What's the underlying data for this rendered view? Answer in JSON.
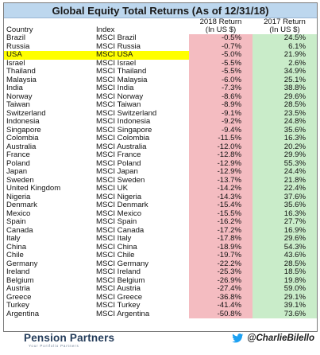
{
  "title": "Global Equity Total Returns (As of  12/31/18)",
  "headers": {
    "country": "Country",
    "index": "Index",
    "return_2018_line1": "2018 Return",
    "return_2018_line2": "(In US $)",
    "return_2017_line1": "2017 Return",
    "return_2017_line2": "(In US $)"
  },
  "highlight_row": "USA",
  "colors": {
    "title_bg": "#bdd7ee",
    "negative_bg": "#f4bcc1",
    "positive_bg": "#c9ecc9",
    "highlight": "#ffff00",
    "twitter_blue": "#1da1f2"
  },
  "chart_data": {
    "type": "table",
    "columns": [
      "Country",
      "Index",
      "2018 Return (In US $)",
      "2017 Return (In US $)"
    ],
    "rows": [
      {
        "country": "Brazil",
        "index": "MSCI Brazil",
        "r2018": "-0.5%",
        "r2017": "24.5%"
      },
      {
        "country": "Russia",
        "index": "MSCI Russia",
        "r2018": "-0.7%",
        "r2017": "6.1%"
      },
      {
        "country": "USA",
        "index": "MSCI USA",
        "r2018": "-5.0%",
        "r2017": "21.9%"
      },
      {
        "country": "Israel",
        "index": "MSCI Israel",
        "r2018": "-5.5%",
        "r2017": "2.6%"
      },
      {
        "country": "Thailand",
        "index": "MSCI Thailand",
        "r2018": "-5.5%",
        "r2017": "34.9%"
      },
      {
        "country": "Malaysia",
        "index": "MSCI Malaysia",
        "r2018": "-6.0%",
        "r2017": "25.1%"
      },
      {
        "country": "India",
        "index": "MSCI India",
        "r2018": "-7.3%",
        "r2017": "38.8%"
      },
      {
        "country": "Norway",
        "index": "MSCI Norway",
        "r2018": "-8.6%",
        "r2017": "29.6%"
      },
      {
        "country": "Taiwan",
        "index": "MSCI Taiwan",
        "r2018": "-8.9%",
        "r2017": "28.5%"
      },
      {
        "country": "Switzerland",
        "index": "MSCI Switzerland",
        "r2018": "-9.1%",
        "r2017": "23.5%"
      },
      {
        "country": "Indonesia",
        "index": "MSCI Indonesia",
        "r2018": "-9.2%",
        "r2017": "24.8%"
      },
      {
        "country": "Singapore",
        "index": "MSCI Singapore",
        "r2018": "-9.4%",
        "r2017": "35.6%"
      },
      {
        "country": "Colombia",
        "index": "MSCI Colombia",
        "r2018": "-11.5%",
        "r2017": "16.3%"
      },
      {
        "country": "Australia",
        "index": "MSCI Australia",
        "r2018": "-12.0%",
        "r2017": "20.2%"
      },
      {
        "country": "France",
        "index": "MSCI France",
        "r2018": "-12.8%",
        "r2017": "29.9%"
      },
      {
        "country": "Poland",
        "index": "MSCI Poland",
        "r2018": "-12.9%",
        "r2017": "55.3%"
      },
      {
        "country": "Japan",
        "index": "MSCI Japan",
        "r2018": "-12.9%",
        "r2017": "24.4%"
      },
      {
        "country": "Sweden",
        "index": "MSCI Sweden",
        "r2018": "-13.7%",
        "r2017": "21.8%"
      },
      {
        "country": "United Kingdom",
        "index": "MSCI UK",
        "r2018": "-14.2%",
        "r2017": "22.4%"
      },
      {
        "country": "Nigeria",
        "index": "MSCI Nigeria",
        "r2018": "-14.3%",
        "r2017": "37.6%"
      },
      {
        "country": "Denmark",
        "index": "MSCI Denmark",
        "r2018": "-15.4%",
        "r2017": "35.6%"
      },
      {
        "country": "Mexico",
        "index": "MSCI Mexico",
        "r2018": "-15.5%",
        "r2017": "16.3%"
      },
      {
        "country": "Spain",
        "index": "MSCI Spain",
        "r2018": "-16.2%",
        "r2017": "27.7%"
      },
      {
        "country": "Canada",
        "index": "MSCI Canada",
        "r2018": "-17.2%",
        "r2017": "16.9%"
      },
      {
        "country": "Italy",
        "index": "MSCI Italy",
        "r2018": "-17.8%",
        "r2017": "29.6%"
      },
      {
        "country": "China",
        "index": "MSCI China",
        "r2018": "-18.9%",
        "r2017": "54.3%"
      },
      {
        "country": "Chile",
        "index": "MSCI Chile",
        "r2018": "-19.7%",
        "r2017": "43.6%"
      },
      {
        "country": "Germany",
        "index": "MSCI Germany",
        "r2018": "-22.2%",
        "r2017": "28.5%"
      },
      {
        "country": "Ireland",
        "index": "MSCI Ireland",
        "r2018": "-25.3%",
        "r2017": "18.5%"
      },
      {
        "country": "Belgium",
        "index": "MSCI Belgium",
        "r2018": "-26.9%",
        "r2017": "19.8%"
      },
      {
        "country": "Austria",
        "index": "MSCI Austria",
        "r2018": "-27.4%",
        "r2017": "59.0%"
      },
      {
        "country": "Greece",
        "index": "MSCI Greece",
        "r2018": "-36.8%",
        "r2017": "29.1%"
      },
      {
        "country": "Turkey",
        "index": "MSCI Turkey",
        "r2018": "-41.4%",
        "r2017": "39.1%"
      },
      {
        "country": "Argentina",
        "index": "MSCI Argentina",
        "r2018": "-50.8%",
        "r2017": "73.6%"
      }
    ]
  },
  "footer": {
    "brand_name": "Pension Partners",
    "brand_tagline": "Your Portfolio Partners",
    "twitter_handle": "@CharlieBilello",
    "twitter_icon": "twitter-bird-icon"
  }
}
